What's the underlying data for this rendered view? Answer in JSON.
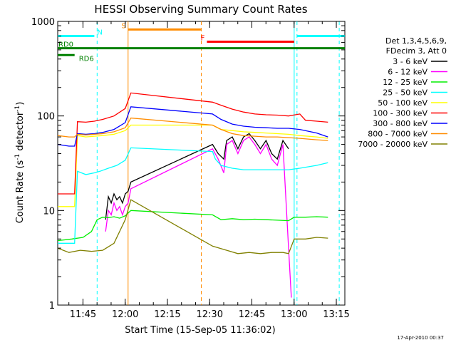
{
  "chart_data": {
    "type": "line",
    "title": "HESSI Observing Summary Count Rates",
    "xlabel": "Start Time (15-Sep-05 11:36:02)",
    "ylabel_main": "Count Rate (s",
    "ylabel_sup1": "-1",
    "ylabel_mid": " detector",
    "ylabel_sup2": "-1",
    "ylabel_end": ")",
    "xlim_minutes": [
      0,
      102
    ],
    "ylim": [
      1,
      1000
    ],
    "yscale": "log",
    "x_ticks": [
      {
        "label": "11:45",
        "minute": 8.97
      },
      {
        "label": "12:00",
        "minute": 23.97
      },
      {
        "label": "12:15",
        "minute": 38.97
      },
      {
        "label": "12:30",
        "minute": 53.97
      },
      {
        "label": "12:45",
        "minute": 68.97
      },
      {
        "label": "13:00",
        "minute": 83.97
      },
      {
        "label": "13:15",
        "minute": 98.97
      }
    ],
    "y_ticks": [
      {
        "label": "1",
        "value": 1
      },
      {
        "label": "10",
        "value": 10
      },
      {
        "label": "100",
        "value": 100
      },
      {
        "label": "1000",
        "value": 1000
      }
    ],
    "legend": {
      "header": [
        "Det 1,3,4,5,6,9,",
        "FDecim 3, Att 0"
      ],
      "placement": "right"
    },
    "series": [
      {
        "name": "3 - 6 keV",
        "color": "#000000",
        "points": [
          [
            17,
            8
          ],
          [
            18,
            14
          ],
          [
            19,
            12
          ],
          [
            20,
            15
          ],
          [
            21,
            13
          ],
          [
            22,
            14
          ],
          [
            23,
            12
          ],
          [
            24,
            15
          ],
          [
            25,
            16
          ],
          [
            26,
            20
          ],
          [
            55,
            50
          ],
          [
            57,
            40
          ],
          [
            59,
            35
          ],
          [
            60,
            55
          ],
          [
            62,
            60
          ],
          [
            64,
            45
          ],
          [
            66,
            60
          ],
          [
            68,
            65
          ],
          [
            70,
            55
          ],
          [
            72,
            45
          ],
          [
            74,
            55
          ],
          [
            76,
            40
          ],
          [
            78,
            35
          ],
          [
            80,
            55
          ],
          [
            82,
            45
          ]
        ]
      },
      {
        "name": "6 - 12 keV",
        "color": "#ff00ff",
        "points": [
          [
            17,
            6
          ],
          [
            18,
            10
          ],
          [
            19,
            9
          ],
          [
            20,
            12
          ],
          [
            21,
            10
          ],
          [
            22,
            11
          ],
          [
            23,
            9
          ],
          [
            24,
            11
          ],
          [
            25,
            12
          ],
          [
            26,
            17
          ],
          [
            55,
            45
          ],
          [
            57,
            35
          ],
          [
            59,
            25
          ],
          [
            60,
            50
          ],
          [
            62,
            55
          ],
          [
            64,
            40
          ],
          [
            66,
            55
          ],
          [
            68,
            60
          ],
          [
            70,
            50
          ],
          [
            72,
            40
          ],
          [
            74,
            50
          ],
          [
            76,
            35
          ],
          [
            78,
            30
          ],
          [
            80,
            50
          ],
          [
            82,
            4
          ],
          [
            83,
            1.2
          ]
        ]
      },
      {
        "name": "12 - 25 keV",
        "color": "#00ee00",
        "points": [
          [
            0,
            4.8
          ],
          [
            5,
            5
          ],
          [
            9,
            5.2
          ],
          [
            12,
            6
          ],
          [
            14,
            8
          ],
          [
            16,
            8.5
          ],
          [
            18,
            8.4
          ],
          [
            20,
            8.6
          ],
          [
            22,
            8.3
          ],
          [
            24,
            8.8
          ],
          [
            26,
            10
          ],
          [
            55,
            9
          ],
          [
            58,
            8
          ],
          [
            62,
            8.2
          ],
          [
            66,
            8
          ],
          [
            70,
            8.1
          ],
          [
            74,
            8
          ],
          [
            78,
            7.9
          ],
          [
            82,
            7.8
          ],
          [
            84,
            8.5
          ],
          [
            88,
            8.5
          ],
          [
            92,
            8.6
          ],
          [
            96,
            8.5
          ]
        ]
      },
      {
        "name": "25 - 50 keV",
        "color": "#00ffff",
        "points": [
          [
            0,
            4.5
          ],
          [
            4,
            4.5
          ],
          [
            6,
            4.5
          ],
          [
            7,
            26
          ],
          [
            10,
            24
          ],
          [
            13,
            25
          ],
          [
            15,
            26
          ],
          [
            18,
            28
          ],
          [
            21,
            30
          ],
          [
            24,
            34
          ],
          [
            26,
            46
          ],
          [
            55,
            42
          ],
          [
            56,
            35
          ],
          [
            58,
            30
          ],
          [
            62,
            28
          ],
          [
            66,
            27
          ],
          [
            70,
            27
          ],
          [
            74,
            27
          ],
          [
            78,
            27
          ],
          [
            82,
            27
          ],
          [
            86,
            28
          ],
          [
            92,
            30
          ],
          [
            96,
            32
          ]
        ]
      },
      {
        "name": "50 - 100 keV",
        "color": "#ffff00",
        "points": [
          [
            0,
            11
          ],
          [
            4,
            11
          ],
          [
            6,
            11
          ],
          [
            7,
            62
          ],
          [
            10,
            60
          ],
          [
            13,
            61
          ],
          [
            16,
            62
          ],
          [
            20,
            64
          ],
          [
            24,
            70
          ],
          [
            26,
            80
          ],
          [
            55,
            80
          ],
          [
            58,
            72
          ],
          [
            62,
            70
          ],
          [
            66,
            68
          ],
          [
            70,
            67
          ],
          [
            74,
            66
          ],
          [
            78,
            65
          ],
          [
            82,
            64
          ],
          [
            86,
            62
          ],
          [
            92,
            60
          ],
          [
            96,
            58
          ]
        ]
      },
      {
        "name": "100 - 300 keV",
        "color": "#ff0000",
        "points": [
          [
            0,
            15
          ],
          [
            4,
            15
          ],
          [
            6,
            15
          ],
          [
            7,
            87
          ],
          [
            10,
            86
          ],
          [
            13,
            88
          ],
          [
            16,
            92
          ],
          [
            20,
            100
          ],
          [
            24,
            120
          ],
          [
            26,
            175
          ],
          [
            55,
            140
          ],
          [
            58,
            130
          ],
          [
            62,
            118
          ],
          [
            66,
            110
          ],
          [
            70,
            105
          ],
          [
            74,
            103
          ],
          [
            78,
            102
          ],
          [
            82,
            100
          ],
          [
            86,
            105
          ],
          [
            88,
            90
          ],
          [
            92,
            88
          ],
          [
            96,
            86
          ]
        ]
      },
      {
        "name": "300 - 800 keV",
        "color": "#0000ff",
        "points": [
          [
            0,
            50
          ],
          [
            4,
            48
          ],
          [
            6,
            48
          ],
          [
            7,
            65
          ],
          [
            10,
            64
          ],
          [
            13,
            65
          ],
          [
            16,
            67
          ],
          [
            20,
            72
          ],
          [
            24,
            85
          ],
          [
            26,
            125
          ],
          [
            55,
            105
          ],
          [
            58,
            92
          ],
          [
            62,
            82
          ],
          [
            66,
            78
          ],
          [
            70,
            76
          ],
          [
            74,
            75
          ],
          [
            78,
            74
          ],
          [
            82,
            74
          ],
          [
            86,
            72
          ],
          [
            92,
            66
          ],
          [
            96,
            60
          ]
        ]
      },
      {
        "name": "800 - 7000 keV",
        "color": "#ff8c00",
        "points": [
          [
            0,
            62
          ],
          [
            4,
            60
          ],
          [
            6,
            60
          ],
          [
            7,
            64
          ],
          [
            10,
            63
          ],
          [
            13,
            64
          ],
          [
            16,
            65
          ],
          [
            20,
            68
          ],
          [
            24,
            75
          ],
          [
            26,
            95
          ],
          [
            55,
            80
          ],
          [
            58,
            72
          ],
          [
            62,
            65
          ],
          [
            66,
            62
          ],
          [
            70,
            61
          ],
          [
            74,
            60
          ],
          [
            78,
            60
          ],
          [
            82,
            59
          ],
          [
            86,
            58
          ],
          [
            92,
            56
          ],
          [
            96,
            55
          ]
        ]
      },
      {
        "name": "7000 - 20000 keV",
        "color": "#808000",
        "points": [
          [
            0,
            4
          ],
          [
            4,
            3.6
          ],
          [
            8,
            3.8
          ],
          [
            12,
            3.7
          ],
          [
            16,
            3.8
          ],
          [
            20,
            4.5
          ],
          [
            24,
            8
          ],
          [
            26,
            13
          ],
          [
            55,
            4.2
          ],
          [
            60,
            3.8
          ],
          [
            64,
            3.5
          ],
          [
            68,
            3.6
          ],
          [
            72,
            3.5
          ],
          [
            76,
            3.6
          ],
          [
            80,
            3.6
          ],
          [
            82,
            3.5
          ],
          [
            84,
            5
          ],
          [
            88,
            5
          ],
          [
            92,
            5.2
          ],
          [
            96,
            5.1
          ]
        ]
      }
    ],
    "status_bars": [
      {
        "label": "N",
        "color": "#00ffff",
        "level": 700,
        "segments": [
          [
            0,
            13
          ],
          [
            85,
            102
          ]
        ]
      },
      {
        "label": "S",
        "color": "#ff8c00",
        "level": 820,
        "segments": [
          [
            25,
            51
          ]
        ]
      },
      {
        "label": "F",
        "color": "#ff0000",
        "level": 610,
        "segments": [
          [
            53,
            84
          ]
        ]
      },
      {
        "label": "RD0",
        "color": "#008000",
        "level": 520,
        "segments": [
          [
            0,
            102
          ]
        ]
      },
      {
        "label": "RD6",
        "color": "#008000",
        "level": 440,
        "segments": [
          [
            0,
            6
          ]
        ]
      }
    ],
    "vertical_markers": [
      {
        "minute": 25,
        "color": "#ff8c00",
        "style": "solid"
      },
      {
        "minute": 51,
        "color": "#ff8c00",
        "style": "dashed"
      },
      {
        "minute": 14,
        "color": "#00ffff",
        "style": "dashed"
      },
      {
        "minute": 84,
        "color": "#00ffff",
        "style": "solid"
      },
      {
        "minute": 85,
        "color": "#00ffff",
        "style": "dashed"
      },
      {
        "minute": 100,
        "color": "#00ffff",
        "style": "dashed"
      }
    ],
    "timestamp": "17-Apr-2010 00:37"
  }
}
